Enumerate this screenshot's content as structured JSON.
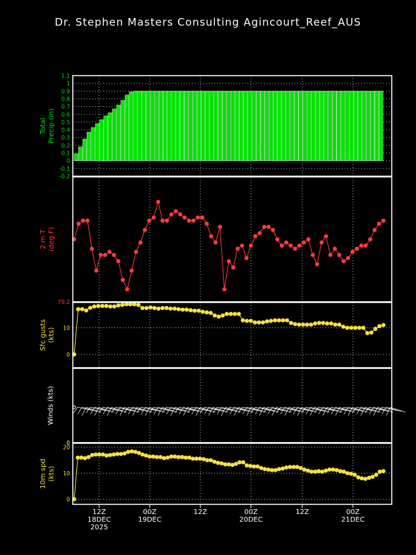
{
  "title": "Dr. Stephen Masters Consulting   Agincourt_Reef_AUS",
  "colors": {
    "background": "#000000",
    "frame": "#ffffff",
    "precip": "#00e400",
    "temp": "#ff3b3b",
    "gust": "#f5e23c",
    "wind": "#ffffff",
    "speed": "#f5e23c",
    "grid": "#bfbfbf"
  },
  "chart_data": [
    {
      "type": "bar",
      "ylabel": [
        "Total",
        "Precip (in)"
      ],
      "ylim": [
        -0.2,
        1.1
      ],
      "yticks": [
        "1.1",
        "1",
        "0.9",
        "0.8",
        "0.7",
        "0.6",
        "0.5",
        "0.4",
        "0.3",
        "0.2",
        "0.1",
        "0",
        "-0.1",
        "-0.2"
      ],
      "values": [
        0.09,
        0.18,
        0.28,
        0.37,
        0.43,
        0.48,
        0.53,
        0.58,
        0.62,
        0.67,
        0.72,
        0.78,
        0.85,
        0.89,
        0.9,
        0.9,
        0.9,
        0.9,
        0.9,
        0.9,
        0.9,
        0.9,
        0.9,
        0.9,
        0.9,
        0.9,
        0.9,
        0.9,
        0.9,
        0.9,
        0.9,
        0.9,
        0.9,
        0.9,
        0.9,
        0.9,
        0.9,
        0.9,
        0.9,
        0.9,
        0.9,
        0.9,
        0.9,
        0.9,
        0.9,
        0.9,
        0.9,
        0.9,
        0.9,
        0.9,
        0.9,
        0.9,
        0.9,
        0.9,
        0.9,
        0.9,
        0.9,
        0.9,
        0.9,
        0.9,
        0.9,
        0.9,
        0.9,
        0.9,
        0.9,
        0.9,
        0.9,
        0.9,
        0.9,
        0.9,
        0.9,
        0.9,
        0.9
      ]
    },
    {
      "type": "line",
      "ylabel": [
        "2 m T",
        "(deg F)"
      ],
      "ylim": [
        79.2,
        83.2
      ],
      "yticks": [
        "79.2"
      ],
      "values": [
        81.2,
        81.7,
        81.8,
        81.8,
        80.9,
        80.2,
        80.7,
        80.7,
        80.8,
        80.7,
        80.5,
        79.9,
        79.6,
        80.2,
        80.8,
        81.1,
        81.5,
        81.8,
        81.9,
        82.4,
        81.8,
        81.8,
        82,
        82.1,
        82,
        81.9,
        81.8,
        81.8,
        81.9,
        81.9,
        81.7,
        81.3,
        81.1,
        81.6,
        79.6,
        80.5,
        80.3,
        80.9,
        81,
        80.6,
        81,
        81.3,
        81.4,
        81.6,
        81.6,
        81.5,
        81.2,
        81,
        81.1,
        81,
        80.9,
        81,
        81.1,
        81.2,
        80.7,
        80.4,
        81.1,
        81.3,
        80.7,
        80.9,
        80.7,
        80.5,
        80.6,
        80.8,
        80.9,
        81,
        81,
        81.2,
        81.5,
        81.7,
        81.8
      ]
    },
    {
      "type": "line",
      "ylabel": [
        "Sfc gusts",
        "(kts)"
      ],
      "ylim": [
        -5,
        19.5
      ],
      "yticks": [
        "10",
        "0"
      ],
      "values": [
        0,
        17,
        17,
        16.5,
        17.5,
        18,
        18.2,
        18.2,
        18.2,
        18,
        18,
        18.4,
        18.6,
        18.8,
        18.8,
        18.8,
        18.6,
        17.4,
        17.4,
        17.6,
        17.4,
        17.2,
        17.4,
        17.4,
        17.2,
        17.2,
        17,
        16.8,
        16.8,
        16.6,
        16.4,
        16.4,
        16,
        15.8,
        15.6,
        14.6,
        14.2,
        14.6,
        15.2,
        15.2,
        15.2,
        15.2,
        12.8,
        12.6,
        12.6,
        12,
        12,
        12,
        12.4,
        12.6,
        12.8,
        12.8,
        12.8,
        12.8,
        11.8,
        11.4,
        11.2,
        11.2,
        11.2,
        11.2,
        11.6,
        11.8,
        11.8,
        11.6,
        11.6,
        11.2,
        11.2,
        10.4,
        10,
        10,
        10,
        10,
        10,
        8,
        8.2,
        9.6,
        10.6,
        11
      ]
    },
    {
      "type": "line",
      "ylabel": [
        "Winds (kts)"
      ],
      "ylim": [
        0,
        10
      ],
      "yticks": [
        "0"
      ],
      "values": [
        0
      ]
    },
    {
      "type": "line",
      "ylabel": [
        "10m spd",
        "(kts)"
      ],
      "ylim": [
        -2,
        21.5
      ],
      "yticks": [
        "20",
        "10",
        "0"
      ],
      "x_tick_labels": [
        [
          "12Z",
          "18DEC",
          "2025"
        ],
        [
          "00Z",
          "19DEC"
        ],
        [
          "12Z"
        ],
        [
          "00Z",
          "20DEC"
        ],
        [
          "12Z"
        ],
        [
          "00Z",
          "21DEC"
        ]
      ],
      "values": [
        0,
        16,
        16,
        15.8,
        16.2,
        17,
        17.2,
        17.2,
        17.2,
        16.8,
        17,
        17.2,
        17.4,
        17.4,
        17.6,
        18.2,
        18.4,
        18.2,
        17.8,
        17.2,
        16.8,
        16.4,
        16.4,
        16.2,
        16.2,
        15.8,
        16,
        16.4,
        16.4,
        16.2,
        16.2,
        16,
        16,
        15.6,
        15.6,
        15.6,
        15.4,
        15,
        15,
        14.4,
        14,
        13.8,
        13.4,
        13.4,
        13.2,
        13.6,
        14.2,
        14.2,
        13,
        12.8,
        12.6,
        12.6,
        12,
        11.6,
        11.4,
        11.2,
        11.2,
        11.6,
        11.8,
        12.2,
        12.4,
        12.4,
        12.4,
        12,
        11.4,
        11,
        10.6,
        10.6,
        10.8,
        10.6,
        11,
        11.4,
        11.4,
        11.2,
        10.8,
        10.6,
        10,
        9.8,
        9.4,
        8.4,
        8,
        7.8,
        8.2,
        8.6,
        9.4,
        10.6,
        10.8
      ]
    }
  ]
}
